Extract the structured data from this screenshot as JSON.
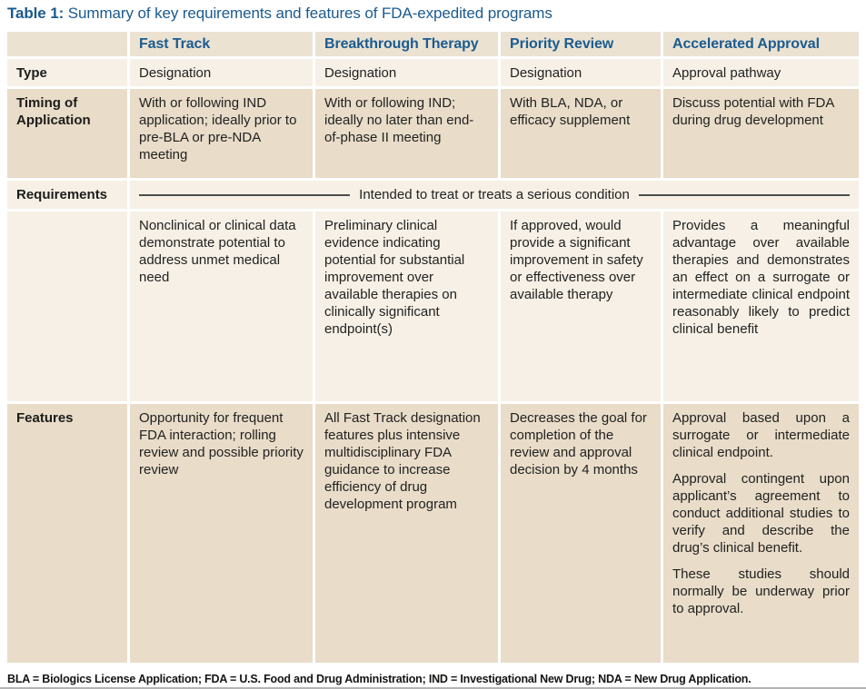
{
  "title": {
    "label": "Table 1:",
    "text": " Summary of key requirements and features of FDA-expedited programs"
  },
  "columns": {
    "c1": "Fast Track",
    "c2": "Breakthrough Therapy",
    "c3": "Priority Review",
    "c4": "Accelerated Approval"
  },
  "rows": {
    "type": {
      "label": "Type",
      "fast_track": "Designation",
      "breakthrough": "Designation",
      "priority": "Designation",
      "accelerated": "Approval pathway"
    },
    "timing": {
      "label": "Timing of Application",
      "fast_track": "With or following IND application; ideally prior to pre-BLA or pre-NDA meeting",
      "breakthrough": "With or following IND; ideally no later than end-of-phase II meeting",
      "priority": "With BLA, NDA, or efficacy supplement",
      "accelerated": "Discuss potential with FDA during drug development"
    },
    "requirements": {
      "label": "Requirements",
      "span_text": "Intended to treat or treats a serious condition"
    },
    "requirements_detail": {
      "fast_track": "Nonclinical or clinical data demonstrate potential to address unmet medical need",
      "breakthrough": "Preliminary clinical evidence indicating potential for substantial improvement over available therapies on clinically significant endpoint(s)",
      "priority": "If approved, would provide a significant improvement in safety or effectiveness over available therapy",
      "accelerated": "Provides a meaningful advantage over available therapies and demonstrates an effect on a surrogate or intermediate clinical endpoint reasonably likely to predict clinical benefit"
    },
    "features": {
      "label": "Features",
      "fast_track": "Opportunity for frequent FDA interaction; rolling review and possible priority review",
      "breakthrough": "All Fast Track designation features plus intensive multidisciplinary FDA guidance to increase efficiency of drug development program",
      "priority": "Decreases the goal for completion of the review and approval decision by 4 months",
      "accelerated": {
        "paragraphs": {
          "p1": "Approval based upon a surrogate or intermediate clinical endpoint.",
          "p2": "Approval contingent upon applicant’s agreement to conduct additional studies to verify and describe the drug’s clinical benefit.",
          "p3": "These studies should normally be underway prior to approval."
        }
      }
    }
  },
  "footnote": "BLA = Biologics License Application; FDA = U.S. Food and Drug Administration; IND = Investigational New Drug; NDA = New Drug Application.",
  "colors": {
    "accent_blue": "#1b5c90",
    "band_header": "#ece2d2",
    "band_light": "#f6f0e6",
    "band_dark": "#e9dcc9",
    "rule_gray": "#b3b3b3"
  }
}
